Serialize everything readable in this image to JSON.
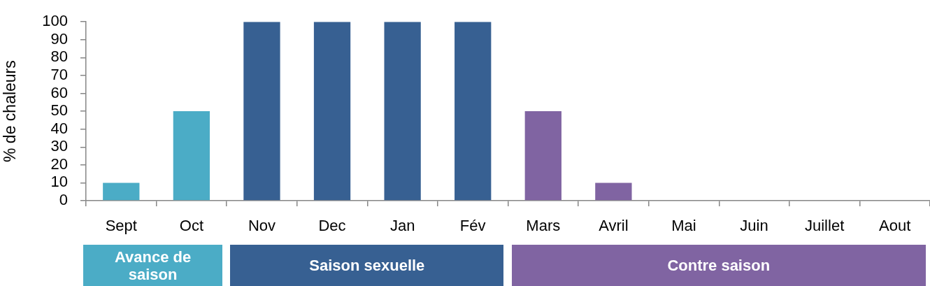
{
  "chart_data": {
    "type": "bar",
    "ylabel": "% de chaleurs",
    "categories": [
      "Sept",
      "Oct",
      "Nov",
      "Dec",
      "Jan",
      "Fév",
      "Mars",
      "Avril",
      "Mai",
      "Juin",
      "Juillet",
      "Aout"
    ],
    "values": [
      10,
      50,
      100,
      100,
      100,
      100,
      50,
      10,
      0,
      0,
      0,
      0
    ],
    "colors": [
      "#4bacc6",
      "#4bacc6",
      "#376092",
      "#376092",
      "#376092",
      "#376092",
      "#8064a2",
      "#8064a2",
      "#8064a2",
      "#8064a2",
      "#8064a2",
      "#8064a2"
    ],
    "ylim": [
      0,
      100
    ],
    "yticks": [
      0,
      10,
      20,
      30,
      40,
      50,
      60,
      70,
      80,
      90,
      100
    ],
    "annotations": [
      "Avance de saison",
      "Saison sexuelle",
      "Contre saison"
    ]
  }
}
